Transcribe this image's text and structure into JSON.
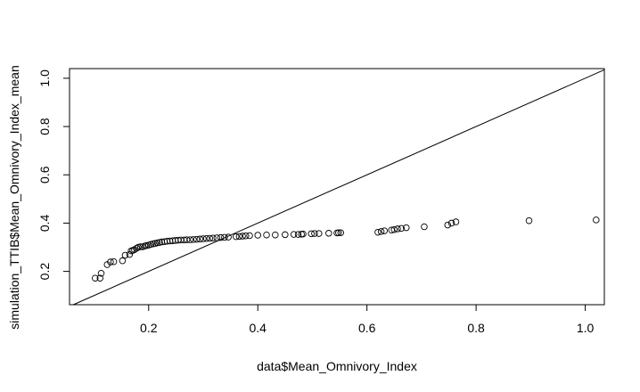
{
  "chart_data": {
    "type": "scatter",
    "xlabel": "data$Mean_Omnivory_Index",
    "ylabel": "simulation_TTIB$Mean_Omnivory_Index_mean",
    "xlim": [
      0.055,
      1.035
    ],
    "ylim": [
      0.062,
      1.04
    ],
    "xticks": [
      {
        "value": 0.2,
        "label": "0.2"
      },
      {
        "value": 0.4,
        "label": "0.4"
      },
      {
        "value": 0.6,
        "label": "0.6"
      },
      {
        "value": 0.8,
        "label": "0.8"
      },
      {
        "value": 1.0,
        "label": "1.0"
      }
    ],
    "yticks": [
      {
        "value": 0.2,
        "label": "0.2"
      },
      {
        "value": 0.4,
        "label": "0.4"
      },
      {
        "value": 0.6,
        "label": "0.6"
      },
      {
        "value": 0.8,
        "label": "0.8"
      },
      {
        "value": 1.0,
        "label": "1.0"
      }
    ],
    "reference_line": {
      "type": "identity",
      "slope": 1,
      "intercept": 0
    },
    "marker": "open-circle",
    "color": "#000000",
    "grid": false,
    "legend": "none",
    "points": [
      [
        0.102,
        0.172
      ],
      [
        0.111,
        0.172
      ],
      [
        0.113,
        0.192
      ],
      [
        0.124,
        0.228
      ],
      [
        0.13,
        0.239
      ],
      [
        0.136,
        0.24
      ],
      [
        0.152,
        0.244
      ],
      [
        0.157,
        0.267
      ],
      [
        0.165,
        0.27
      ],
      [
        0.168,
        0.285
      ],
      [
        0.171,
        0.287
      ],
      [
        0.174,
        0.29
      ],
      [
        0.178,
        0.296
      ],
      [
        0.181,
        0.3
      ],
      [
        0.185,
        0.302
      ],
      [
        0.189,
        0.302
      ],
      [
        0.193,
        0.305
      ],
      [
        0.196,
        0.307
      ],
      [
        0.2,
        0.309
      ],
      [
        0.204,
        0.312
      ],
      [
        0.208,
        0.314
      ],
      [
        0.212,
        0.316
      ],
      [
        0.216,
        0.318
      ],
      [
        0.22,
        0.32
      ],
      [
        0.224,
        0.322
      ],
      [
        0.229,
        0.323
      ],
      [
        0.234,
        0.325
      ],
      [
        0.239,
        0.326
      ],
      [
        0.244,
        0.327
      ],
      [
        0.249,
        0.328
      ],
      [
        0.254,
        0.329
      ],
      [
        0.259,
        0.33
      ],
      [
        0.265,
        0.33
      ],
      [
        0.27,
        0.331
      ],
      [
        0.276,
        0.331
      ],
      [
        0.282,
        0.332
      ],
      [
        0.288,
        0.333
      ],
      [
        0.294,
        0.334
      ],
      [
        0.3,
        0.335
      ],
      [
        0.306,
        0.336
      ],
      [
        0.312,
        0.337
      ],
      [
        0.318,
        0.338
      ],
      [
        0.325,
        0.339
      ],
      [
        0.332,
        0.34
      ],
      [
        0.339,
        0.341
      ],
      [
        0.346,
        0.342
      ],
      [
        0.36,
        0.344
      ],
      [
        0.366,
        0.345
      ],
      [
        0.372,
        0.346
      ],
      [
        0.378,
        0.347
      ],
      [
        0.385,
        0.348
      ],
      [
        0.4,
        0.35
      ],
      [
        0.416,
        0.351
      ],
      [
        0.432,
        0.351
      ],
      [
        0.45,
        0.352
      ],
      [
        0.466,
        0.353
      ],
      [
        0.474,
        0.353
      ],
      [
        0.48,
        0.354
      ],
      [
        0.483,
        0.355
      ],
      [
        0.498,
        0.356
      ],
      [
        0.504,
        0.357
      ],
      [
        0.512,
        0.357
      ],
      [
        0.53,
        0.358
      ],
      [
        0.545,
        0.359
      ],
      [
        0.548,
        0.36
      ],
      [
        0.552,
        0.36
      ],
      [
        0.62,
        0.362
      ],
      [
        0.626,
        0.365
      ],
      [
        0.632,
        0.368
      ],
      [
        0.645,
        0.371
      ],
      [
        0.65,
        0.373
      ],
      [
        0.656,
        0.376
      ],
      [
        0.663,
        0.378
      ],
      [
        0.672,
        0.381
      ],
      [
        0.705,
        0.385
      ],
      [
        0.748,
        0.392
      ],
      [
        0.755,
        0.4
      ],
      [
        0.763,
        0.405
      ],
      [
        0.897,
        0.41
      ],
      [
        1.02,
        0.413
      ]
    ]
  }
}
